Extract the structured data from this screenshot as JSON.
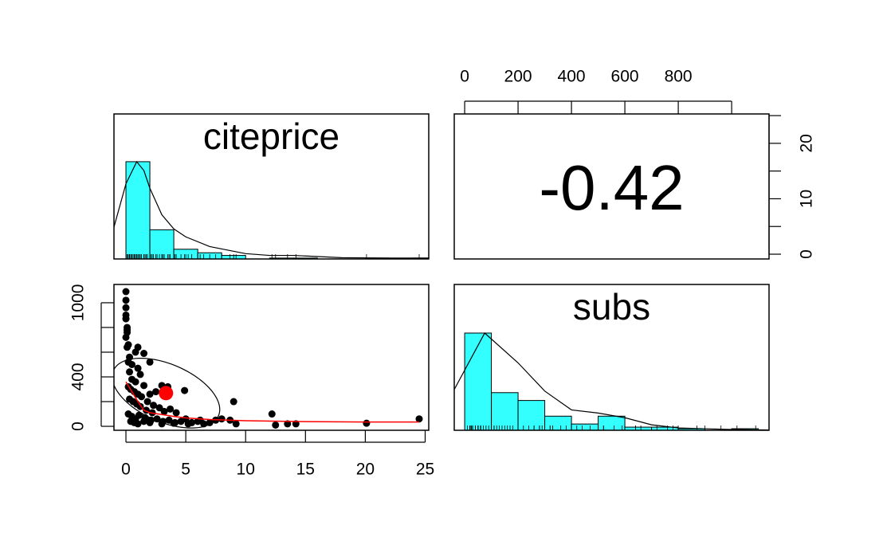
{
  "chart_data": [
    {
      "type": "histogram",
      "title": "citeprice",
      "bins": [
        0,
        2,
        4,
        6,
        8,
        10,
        12,
        14,
        16,
        18,
        20,
        22,
        24,
        26
      ],
      "counts": [
        110,
        33,
        11,
        7,
        4,
        0,
        1,
        1,
        0,
        0,
        1,
        0,
        1
      ],
      "color": "#33ffff",
      "xlim": [
        -1,
        25.3
      ],
      "ylim": [
        0,
        164
      ],
      "density": {
        "x": [
          -1,
          0,
          0.9,
          1.5,
          2,
          3,
          4,
          5,
          7,
          10,
          12,
          14,
          18,
          22,
          25.3
        ],
        "y": [
          36,
          85,
          110,
          100,
          80,
          50,
          34,
          25,
          14,
          6,
          4,
          4,
          1.5,
          1,
          1
        ]
      }
    },
    {
      "type": "correlation",
      "value": -0.42,
      "xlim": [
        -39,
        1140
      ],
      "xticks": [
        0,
        200,
        400,
        600,
        800
      ],
      "xminorticks": [
        1000
      ],
      "ylim": [
        -0.86,
        25.3
      ],
      "yticks": [
        0,
        10,
        20
      ],
      "yminorticks": [
        5,
        15,
        25
      ]
    },
    {
      "type": "scatter",
      "color": "#000000",
      "x": [
        0,
        0,
        0,
        0,
        0,
        0.1,
        0.1,
        0.1,
        0,
        0.2,
        0.1,
        1,
        1.5,
        0.8,
        0.3,
        0.2,
        0.5,
        1,
        2,
        1.2,
        0.3,
        0.5,
        0.8,
        1.5,
        0.2,
        0.4,
        0.7,
        1,
        1.3,
        2,
        2.5,
        3,
        3.5,
        4.9,
        0.3,
        0.6,
        0.9,
        1.2,
        1.8,
        2.3,
        2.8,
        3.2,
        3.7,
        4.2,
        0.2,
        0.5,
        0.8,
        1.1,
        1.6,
        2.1,
        2.6,
        3.1,
        3.6,
        4.1,
        4.6,
        5,
        5.5,
        6,
        6.5,
        7,
        7.5,
        8,
        8.7,
        9,
        9.2,
        12.2,
        12.5,
        13.5,
        14.2,
        20.1,
        24.5,
        0.4,
        0.7,
        1,
        1.5,
        2,
        3,
        4,
        5.2,
        6.2,
        2.2,
        1.7
      ],
      "y": [
        1090,
        1020,
        960,
        900,
        870,
        800,
        780,
        760,
        720,
        660,
        640,
        640,
        590,
        600,
        560,
        520,
        500,
        470,
        520,
        420,
        440,
        380,
        360,
        330,
        320,
        300,
        280,
        260,
        240,
        260,
        280,
        330,
        320,
        290,
        220,
        200,
        180,
        160,
        200,
        170,
        150,
        120,
        140,
        110,
        100,
        80,
        60,
        90,
        70,
        50,
        60,
        40,
        50,
        30,
        40,
        60,
        30,
        40,
        20,
        30,
        50,
        60,
        50,
        200,
        20,
        100,
        10,
        20,
        20,
        25,
        60,
        40,
        30,
        20,
        40,
        30,
        20,
        25,
        20,
        50,
        110,
        130
      ],
      "smooth": {
        "color": "#ff0000",
        "x": [
          0,
          0.5,
          1,
          1.5,
          2,
          3,
          4,
          5,
          7,
          10,
          15,
          20,
          24.5
        ],
        "y": [
          360,
          280,
          200,
          130,
          110,
          95,
          80,
          68,
          55,
          45,
          38,
          35,
          35
        ]
      },
      "mean_color": "#ff0000",
      "xlim": [
        -1,
        25.3
      ],
      "xticks": [
        0,
        5,
        10,
        15,
        20,
        25
      ],
      "ylim": [
        -32,
        1148
      ],
      "yticks": [
        0,
        400,
        1000
      ],
      "yminorticks": [
        200,
        600,
        800
      ]
    },
    {
      "type": "histogram",
      "title": "subs",
      "bins": [
        0,
        100,
        200,
        300,
        400,
        500,
        600,
        700,
        800,
        900,
        1000,
        1100
      ],
      "counts": [
        62,
        24,
        19,
        9,
        4,
        9,
        2,
        2,
        1,
        0,
        1
      ],
      "color": "#33ffff",
      "xlim": [
        -39,
        1140
      ],
      "ylim": [
        0,
        93
      ],
      "density": {
        "x": [
          -39,
          75,
          200,
          300,
          400,
          500,
          600,
          700,
          800,
          1000,
          1140
        ],
        "y": [
          26,
          62,
          43,
          25,
          13,
          11,
          8,
          3.5,
          1.5,
          0.5,
          0.2
        ]
      }
    }
  ]
}
